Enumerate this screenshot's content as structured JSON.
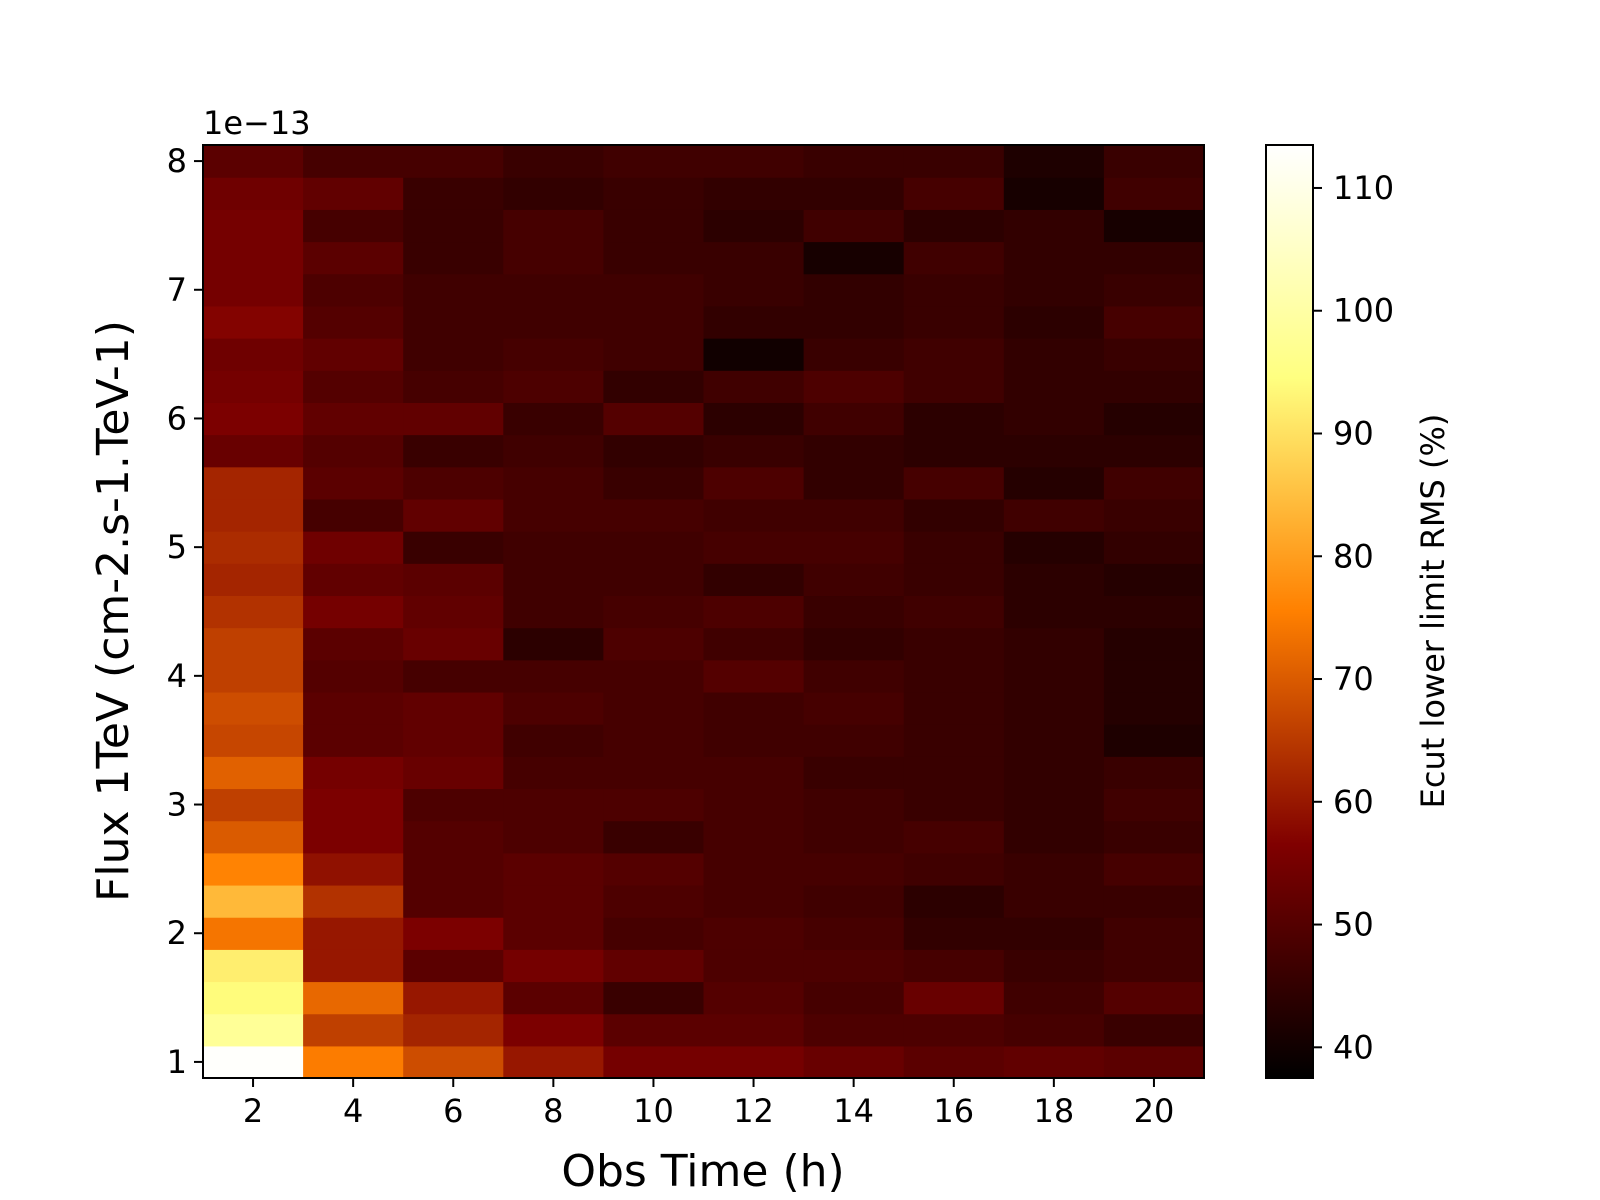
{
  "chart_data": {
    "type": "heatmap",
    "xlabel": "Obs Time (h)",
    "ylabel": "Flux 1TeV (cm-2.s-1.TeV-1)",
    "y_offset_label": "1e−13",
    "colorbar_label": "Ecut lower limit RMS (%)",
    "colormap": "afmhot",
    "x_ticks": [
      "2",
      "4",
      "6",
      "8",
      "10",
      "12",
      "14",
      "16",
      "18",
      "20"
    ],
    "y_ticks": [
      "1",
      "2",
      "3",
      "4",
      "5",
      "6",
      "7",
      "8"
    ],
    "colorbar_ticks": [
      "40",
      "50",
      "60",
      "70",
      "80",
      "90",
      "100",
      "110"
    ],
    "xlim": [
      1,
      21
    ],
    "ylim": [
      0.875,
      8.125
    ],
    "color_range": [
      37.5,
      113.5
    ],
    "x_centers": [
      2,
      4,
      6,
      8,
      10,
      12,
      14,
      16,
      18,
      20
    ],
    "y_centers": [
      1.0,
      1.25,
      1.5,
      1.75,
      2.0,
      2.25,
      2.5,
      2.75,
      3.0,
      3.25,
      3.5,
      3.75,
      4.0,
      4.25,
      4.5,
      4.75,
      5.0,
      5.25,
      5.5,
      5.75,
      6.0,
      6.25,
      6.5,
      6.75,
      7.0,
      7.25,
      7.5,
      7.75,
      8.0
    ],
    "z": [
      [
        113,
        75,
        68,
        60,
        55,
        55,
        53,
        51,
        52,
        51
      ],
      [
        98,
        66,
        62,
        56,
        51,
        51,
        49,
        49,
        48,
        46
      ],
      [
        94,
        72,
        60,
        51,
        46,
        50,
        48,
        53,
        47,
        50
      ],
      [
        92,
        60,
        51,
        55,
        52,
        49,
        49,
        48,
        46,
        47
      ],
      [
        74,
        60,
        56,
        51,
        48,
        49,
        48,
        45,
        45,
        47
      ],
      [
        84,
        64,
        50,
        51,
        49,
        48,
        47,
        44,
        46,
        46
      ],
      [
        76,
        59,
        50,
        51,
        50,
        48,
        48,
        47,
        46,
        48
      ],
      [
        70,
        56,
        50,
        49,
        46,
        48,
        47,
        48,
        45,
        46
      ],
      [
        66,
        56,
        49,
        49,
        49,
        48,
        47,
        46,
        45,
        47
      ],
      [
        71,
        55,
        53,
        48,
        48,
        48,
        46,
        46,
        45,
        46
      ],
      [
        67,
        51,
        52,
        47,
        48,
        47,
        47,
        46,
        45,
        42
      ],
      [
        68,
        51,
        52,
        49,
        48,
        47,
        48,
        46,
        45,
        43
      ],
      [
        66,
        50,
        48,
        48,
        48,
        50,
        47,
        46,
        45,
        43
      ],
      [
        66,
        51,
        53,
        44,
        49,
        47,
        45,
        46,
        45,
        43
      ],
      [
        64,
        55,
        52,
        47,
        48,
        49,
        46,
        47,
        44,
        44
      ],
      [
        62,
        52,
        51,
        47,
        47,
        45,
        47,
        46,
        44,
        43
      ],
      [
        63,
        54,
        46,
        47,
        47,
        48,
        48,
        46,
        43,
        45
      ],
      [
        62,
        48,
        52,
        48,
        48,
        47,
        47,
        45,
        47,
        46
      ],
      [
        62,
        51,
        49,
        48,
        46,
        49,
        45,
        48,
        43,
        47
      ],
      [
        53,
        50,
        46,
        47,
        45,
        46,
        45,
        44,
        44,
        44
      ],
      [
        56,
        52,
        52,
        46,
        50,
        44,
        47,
        44,
        45,
        43
      ],
      [
        55,
        50,
        48,
        49,
        45,
        47,
        49,
        47,
        45,
        45
      ],
      [
        54,
        52,
        47,
        48,
        47,
        40,
        46,
        47,
        45,
        46
      ],
      [
        57,
        50,
        47,
        47,
        47,
        45,
        45,
        46,
        44,
        48
      ],
      [
        55,
        49,
        47,
        47,
        47,
        46,
        45,
        46,
        45,
        46
      ],
      [
        55,
        51,
        46,
        48,
        46,
        46,
        41,
        47,
        45,
        45
      ],
      [
        55,
        48,
        46,
        48,
        46,
        44,
        47,
        44,
        45,
        41
      ],
      [
        54,
        52,
        46,
        45,
        46,
        45,
        45,
        48,
        41,
        47
      ],
      [
        51,
        48,
        48,
        46,
        47,
        47,
        46,
        46,
        42,
        46
      ]
    ]
  }
}
